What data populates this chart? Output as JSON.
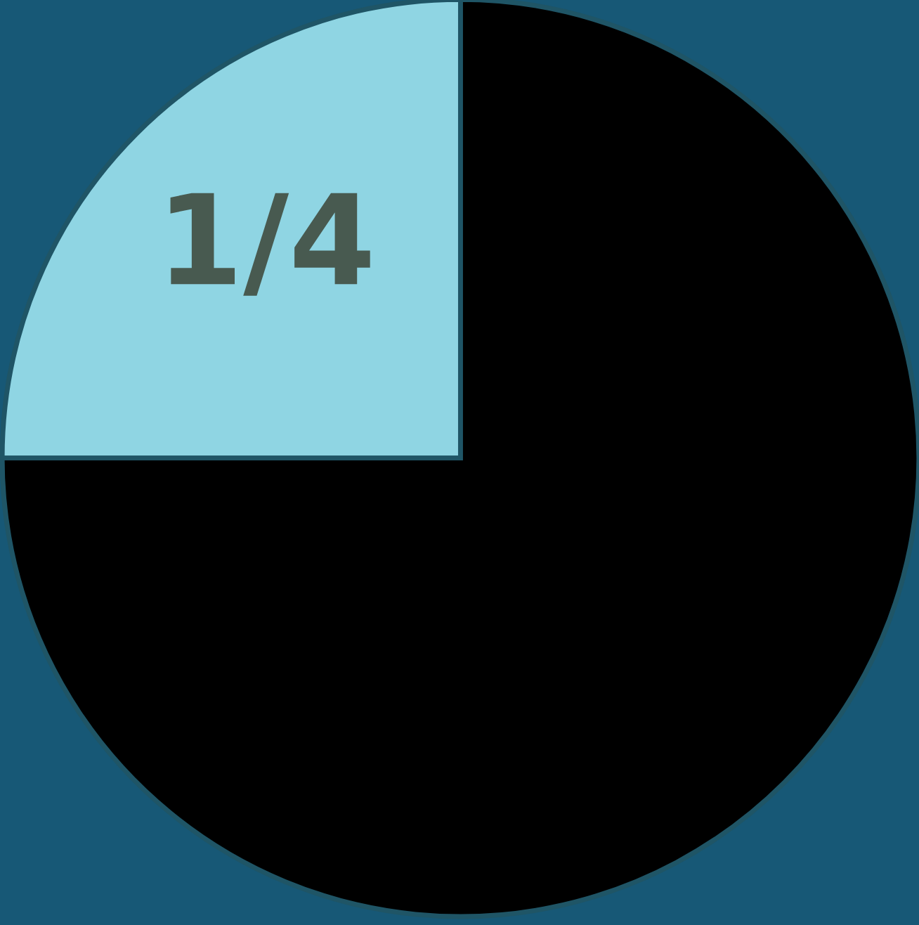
{
  "chart_data": {
    "type": "pie",
    "categories": [
      "1/4",
      null
    ],
    "values": [
      25,
      75
    ],
    "colors": [
      "#8fd5e3",
      "#000000"
    ]
  }
}
